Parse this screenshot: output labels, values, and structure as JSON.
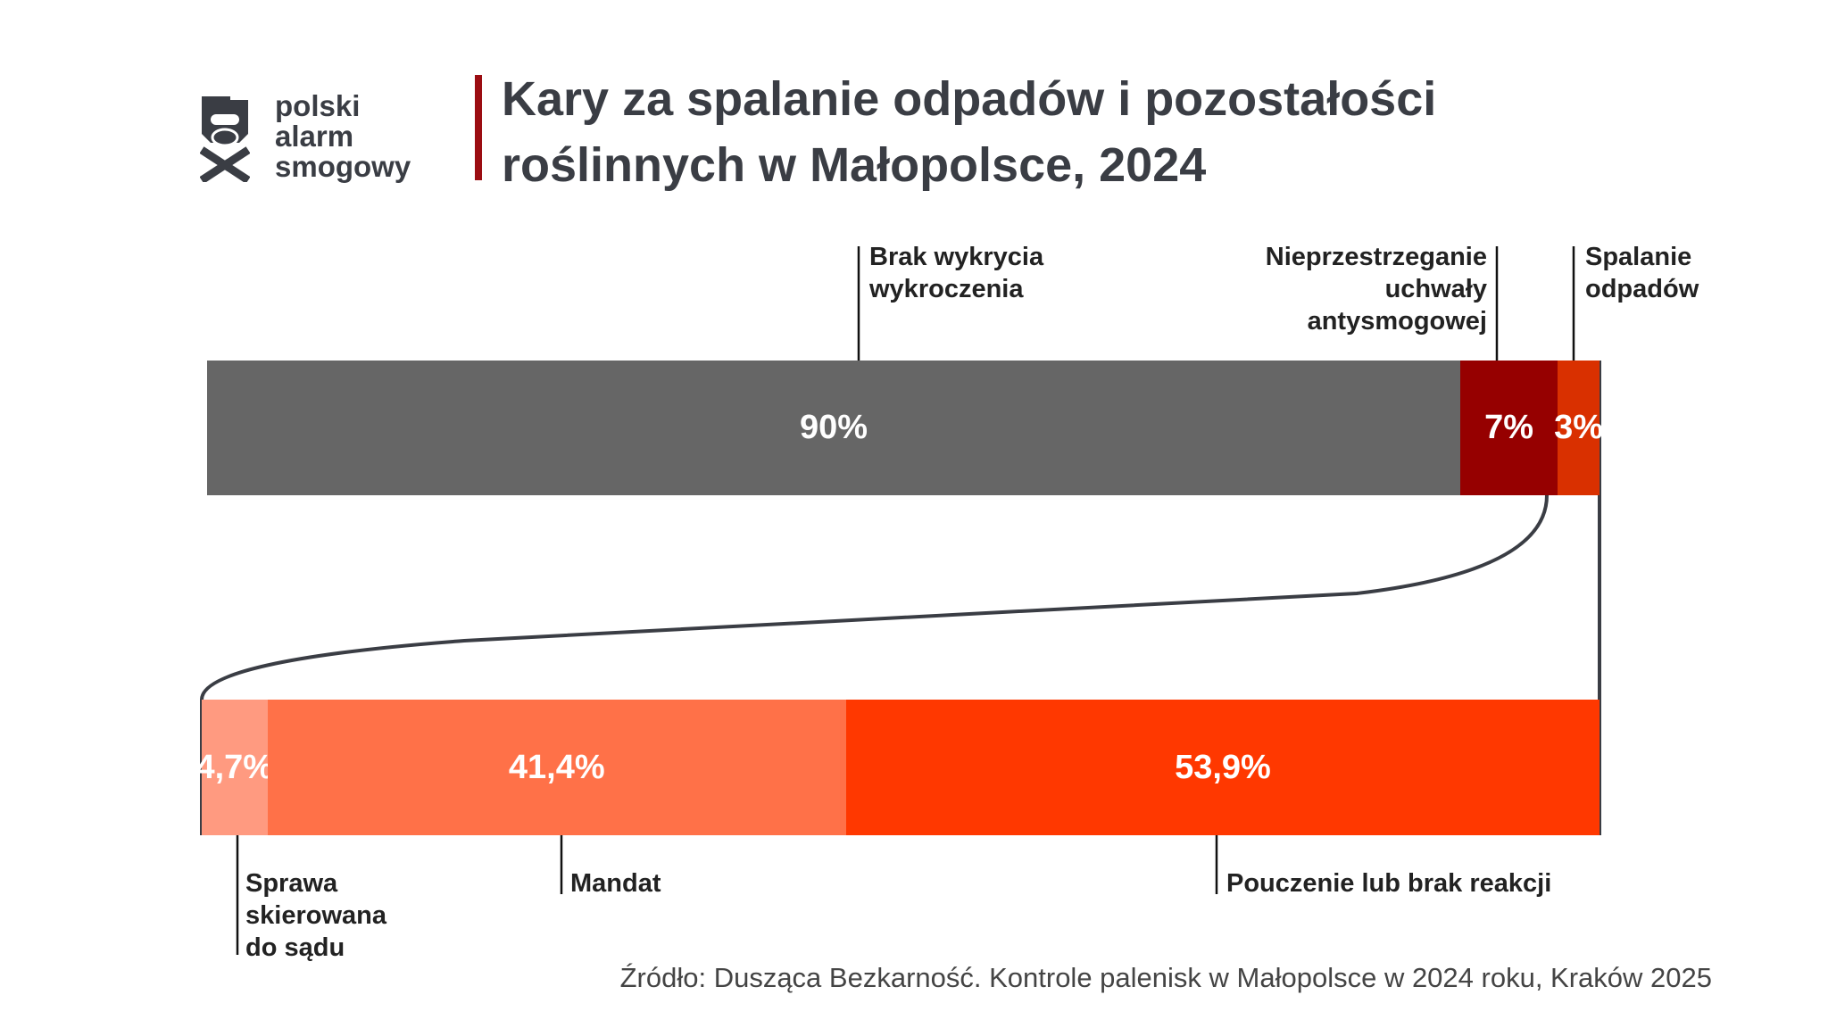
{
  "logo": {
    "lines": [
      "polski",
      "alarm",
      "smogowy"
    ]
  },
  "title": {
    "line1": "Kary za spalanie odpadów i pozostałości",
    "line2": "roślinnych w Małopolsce, 2024"
  },
  "colors": {
    "gray": "#666666",
    "darkred": "#960000",
    "orange": "#d93000",
    "sad": "#ff9a80",
    "mandat": "#ff7148",
    "pouczenie": "#ff3800"
  },
  "chart_data": [
    {
      "type": "bar",
      "stacked": true,
      "orientation": "horizontal",
      "categories": [
        "Brak wykrycia wykroczenia",
        "Nieprzestrzeganie uchwały antysmogowej",
        "Spalanie odpadów"
      ],
      "values": [
        90,
        7,
        3
      ],
      "labels": [
        "90%",
        "7%",
        "3%"
      ],
      "label_text": {
        "brak": [
          "Brak wykrycia",
          "wykroczenia"
        ],
        "nieprz": [
          "Nieprzestrzeganie",
          "uchwały",
          "antysmogowej"
        ],
        "spal": [
          "Spalanie",
          "odpadów"
        ]
      }
    },
    {
      "type": "bar",
      "stacked": true,
      "orientation": "horizontal",
      "categories": [
        "Sprawa skierowana do sądu",
        "Mandat",
        "Pouczenie lub brak reakcji"
      ],
      "values": [
        4.7,
        41.4,
        53.9
      ],
      "labels": [
        "4,7%",
        "41,4%",
        "53,9%"
      ],
      "label_text": {
        "sad": [
          "Sprawa",
          "skierowana",
          "do sądu"
        ],
        "mandat": "Mandat",
        "pouczenie": "Pouczenie lub brak reakcji"
      }
    }
  ],
  "source": "Źródło:  Dusząca Bezkarność. Kontrole palenisk w Małopolsce w 2024 roku, Kraków 2025"
}
